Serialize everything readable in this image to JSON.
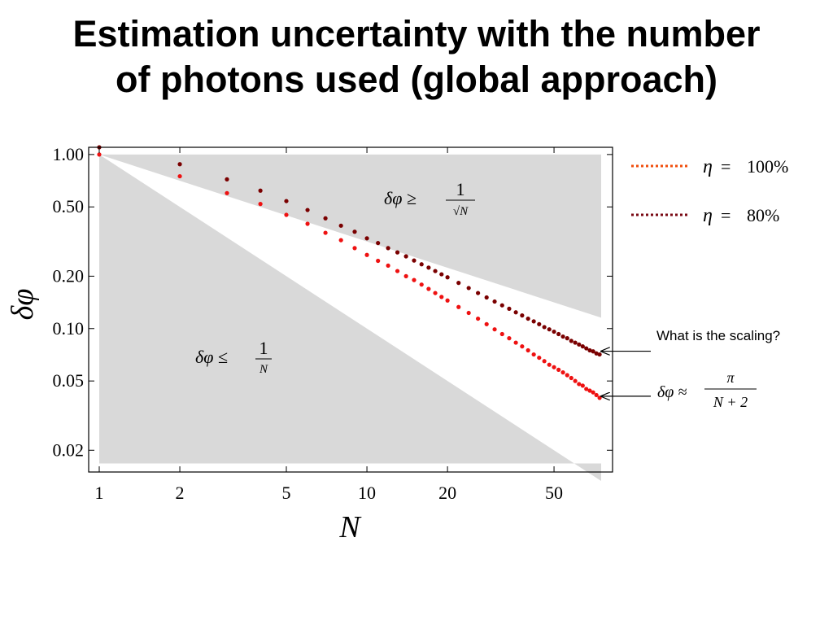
{
  "title": {
    "line1": "Estimation uncertainty with the number",
    "line2": "of photons used (global approach)"
  },
  "colors": {
    "series_100": "#ee1111",
    "series_80": "#7a0000",
    "legend_100": "#f04e0c",
    "legend_80": "#7a0a14",
    "bound_region": "#d9d9d9"
  },
  "chart_data": {
    "type": "scatter",
    "x_scale": "log",
    "y_scale": "log",
    "xlim": [
      1,
      75
    ],
    "ylim": [
      0.015,
      1.1
    ],
    "xlabel": "N",
    "ylabel": "δφ",
    "x_ticks": [
      "1",
      "2",
      "5",
      "10",
      "20",
      "50"
    ],
    "x_tick_values": [
      1,
      2,
      5,
      10,
      20,
      50
    ],
    "y_ticks": [
      "1.00",
      "0.50",
      "0.20",
      "0.10",
      "0.05",
      "0.02"
    ],
    "y_tick_values": [
      1.0,
      0.5,
      0.2,
      0.1,
      0.05,
      0.02
    ],
    "regions": [
      {
        "label_lhs": "δφ ≥",
        "label_num": "1",
        "label_den": "√N",
        "bound": "1/sqrt(N)",
        "side": "above"
      },
      {
        "label_lhs": "δφ ≤",
        "label_num": "1",
        "label_den": "N",
        "bound": "1/N",
        "side": "below"
      }
    ],
    "series": [
      {
        "name": "η = 100%",
        "x": [
          1,
          2,
          3,
          4,
          5,
          6,
          7,
          8,
          9,
          10,
          11,
          12,
          13,
          14,
          15,
          16,
          17,
          18,
          19,
          20,
          22,
          24,
          26,
          28,
          30,
          32,
          34,
          36,
          38,
          40,
          42,
          44,
          46,
          48,
          50,
          52,
          54,
          56,
          58,
          60,
          62,
          64,
          66,
          68,
          70,
          72,
          74
        ],
        "y": [
          1.0,
          0.75,
          0.6,
          0.52,
          0.45,
          0.4,
          0.355,
          0.322,
          0.29,
          0.265,
          0.245,
          0.23,
          0.214,
          0.2,
          0.19,
          0.179,
          0.169,
          0.16,
          0.152,
          0.145,
          0.133,
          0.123,
          0.114,
          0.106,
          0.099,
          0.093,
          0.088,
          0.083,
          0.079,
          0.075,
          0.071,
          0.068,
          0.065,
          0.062,
          0.06,
          0.058,
          0.056,
          0.054,
          0.052,
          0.05,
          0.048,
          0.047,
          0.045,
          0.044,
          0.043,
          0.0415,
          0.04
        ]
      },
      {
        "name": "η = 80%",
        "x": [
          1,
          2,
          3,
          4,
          5,
          6,
          7,
          8,
          9,
          10,
          11,
          12,
          13,
          14,
          15,
          16,
          17,
          18,
          19,
          20,
          22,
          24,
          26,
          28,
          30,
          32,
          34,
          36,
          38,
          40,
          42,
          44,
          46,
          48,
          50,
          52,
          54,
          56,
          58,
          60,
          62,
          64,
          66,
          68,
          70,
          72,
          74
        ],
        "y": [
          1.1,
          0.88,
          0.72,
          0.62,
          0.54,
          0.48,
          0.43,
          0.39,
          0.36,
          0.33,
          0.31,
          0.29,
          0.274,
          0.26,
          0.246,
          0.234,
          0.224,
          0.214,
          0.205,
          0.197,
          0.183,
          0.171,
          0.16,
          0.151,
          0.143,
          0.136,
          0.13,
          0.124,
          0.119,
          0.114,
          0.11,
          0.106,
          0.102,
          0.099,
          0.096,
          0.093,
          0.09,
          0.088,
          0.085,
          0.083,
          0.081,
          0.079,
          0.077,
          0.075,
          0.074,
          0.072,
          0.071
        ]
      }
    ],
    "legend": {
      "placement": "right-top",
      "entries": [
        {
          "eta": "η",
          "eq": "=",
          "value": "100%"
        },
        {
          "eta": "η",
          "eq": "=",
          "value": "80%"
        }
      ]
    },
    "annotations": [
      {
        "text": "What is the scaling?",
        "target_series": 1
      },
      {
        "lhs": "δφ ≈",
        "num": "π",
        "den": "N + 2",
        "target_series": 0
      }
    ]
  }
}
